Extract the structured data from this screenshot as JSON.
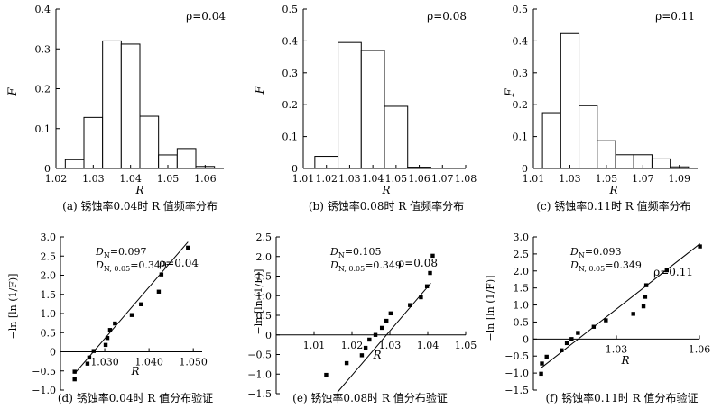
{
  "colors": {
    "ink": "#000000",
    "bar_fill": "#ffffff",
    "background": "#ffffff"
  },
  "chart_data": [
    {
      "type": "bar",
      "panel": "a",
      "caption": "(a) 锈蚀率0.04时 R 值频率分布",
      "xlabel": "R",
      "ylabel": "F",
      "annotation": "ρ=0.04",
      "xlim": [
        1.02,
        1.065
      ],
      "ylim": [
        0,
        0.4
      ],
      "xticks": [
        "1.02",
        "1.03",
        "1.04",
        "1.05",
        "1.06"
      ],
      "yticks": [
        "0",
        "0.1",
        "0.2",
        "0.3",
        "0.4"
      ],
      "bin_edges": [
        1.0225,
        1.0275,
        1.0325,
        1.0375,
        1.0425,
        1.0475,
        1.0525,
        1.0575,
        1.0625
      ],
      "values": [
        0.022,
        0.128,
        0.32,
        0.312,
        0.131,
        0.034,
        0.05,
        0.005
      ]
    },
    {
      "type": "bar",
      "panel": "b",
      "caption": "(b) 锈蚀率0.08时 R 值频率分布",
      "xlabel": "R",
      "ylabel": "F",
      "annotation": "ρ=0.08",
      "xlim": [
        1.01,
        1.08
      ],
      "ylim": [
        0,
        0.5
      ],
      "xticks": [
        "1.01",
        "1.02",
        "1.03",
        "1.04",
        "1.05",
        "1.06",
        "1.07",
        "1.08"
      ],
      "yticks": [
        "0",
        "0.1",
        "0.2",
        "0.3",
        "0.4",
        "0.5"
      ],
      "bin_edges": [
        1.015,
        1.025,
        1.035,
        1.045,
        1.055,
        1.065
      ],
      "values": [
        0.038,
        0.395,
        0.37,
        0.195,
        0.004
      ]
    },
    {
      "type": "bar",
      "panel": "c",
      "caption": "(c) 锈蚀率0.11时 R 值频率分布",
      "xlabel": "R",
      "ylabel": "F",
      "annotation": "ρ=0.11",
      "xlim": [
        1.01,
        1.1
      ],
      "ylim": [
        0,
        0.5
      ],
      "xticks": [
        "1.01",
        "1.03",
        "1.05",
        "1.07",
        "1.09"
      ],
      "yticks": [
        "0",
        "0.1",
        "0.2",
        "0.3",
        "0.4",
        "0.5"
      ],
      "bin_edges": [
        1.015,
        1.025,
        1.035,
        1.045,
        1.055,
        1.065,
        1.075,
        1.085,
        1.095
      ],
      "values": [
        0.175,
        0.423,
        0.197,
        0.087,
        0.043,
        0.043,
        0.03,
        0.005
      ]
    },
    {
      "type": "scatter",
      "panel": "d",
      "caption": "(d) 锈蚀率0.04时 R 值分布验证",
      "xlabel": "R",
      "ylabel": "−ln [ln (1/F)]",
      "annotation": "ρ=0.04",
      "stat_lines": [
        {
          "main": "D",
          "sub": "N",
          "rest": "=0.097"
        },
        {
          "main": "D",
          "sub": "N, 0.05",
          "rest": "=0.349"
        }
      ],
      "xlim": [
        1.02,
        1.052
      ],
      "ylim": [
        -1.0,
        3.0
      ],
      "xticks": [
        "1.030",
        "1.040",
        "1.050"
      ],
      "yticks": [
        "−1.0",
        "−0.5",
        "0",
        "0.5",
        "1.0",
        "1.5",
        "2.0",
        "2.5",
        "3.0"
      ],
      "points": [
        [
          1.0232,
          -0.52
        ],
        [
          1.0232,
          -0.72
        ],
        [
          1.0261,
          -0.31
        ],
        [
          1.0265,
          -0.15
        ],
        [
          1.0275,
          0.02
        ],
        [
          1.0302,
          0.18
        ],
        [
          1.0306,
          0.36
        ],
        [
          1.0312,
          0.57
        ],
        [
          1.0323,
          0.74
        ],
        [
          1.0361,
          0.96
        ],
        [
          1.0382,
          1.24
        ],
        [
          1.0422,
          1.57
        ],
        [
          1.0428,
          2.02
        ],
        [
          1.0488,
          2.72
        ]
      ],
      "fit_line": [
        [
          1.0232,
          -0.57
        ],
        [
          1.0488,
          2.87
        ]
      ]
    },
    {
      "type": "scatter",
      "panel": "e",
      "caption": "(e) 锈蚀率0.08时 R 值分布验证",
      "xlabel": "R",
      "ylabel": "−ln [ln (1/F)]",
      "annotation": "ρ=0.08",
      "stat_lines": [
        {
          "main": "D",
          "sub": "N",
          "rest": "=0.105"
        },
        {
          "main": "D",
          "sub": "N, 0.05",
          "rest": "=0.349"
        }
      ],
      "xlim": [
        1.0,
        1.05
      ],
      "ylim": [
        -1.5,
        2.5
      ],
      "xticks": [
        "1.01",
        "1.02",
        "1.03",
        "1.04",
        "1.05"
      ],
      "yticks": [
        "−1.5",
        "−1.0",
        "−0.5",
        "0",
        "0.5",
        "1.0",
        "1.5",
        "2.0",
        "2.5"
      ],
      "points": [
        [
          1.0132,
          -1.02
        ],
        [
          1.0186,
          -0.72
        ],
        [
          1.0226,
          -0.52
        ],
        [
          1.0236,
          -0.33
        ],
        [
          1.0246,
          -0.12
        ],
        [
          1.0262,
          0.0
        ],
        [
          1.0279,
          0.18
        ],
        [
          1.0291,
          0.36
        ],
        [
          1.0302,
          0.55
        ],
        [
          1.0353,
          0.76
        ],
        [
          1.0382,
          0.96
        ],
        [
          1.0398,
          1.24
        ],
        [
          1.0406,
          1.58
        ],
        [
          1.0413,
          2.02
        ]
      ],
      "fit_line": [
        [
          1.0162,
          -1.46
        ],
        [
          1.0408,
          1.32
        ]
      ]
    },
    {
      "type": "scatter",
      "panel": "f",
      "caption": "(f) 锈蚀率0.11时 R 值分布验证",
      "xlabel": "R",
      "ylabel": "−ln [ln (1/F)]",
      "annotation": "ρ=0.11",
      "stat_lines": [
        {
          "main": "D",
          "sub": "N",
          "rest": "=0.093"
        },
        {
          "main": "D",
          "sub": "N, 0.05",
          "rest": "=0.349"
        }
      ],
      "xlim": [
        1.0,
        1.06
      ],
      "ylim": [
        -1.5,
        3.0
      ],
      "xticks": [
        "1.03",
        "1.06"
      ],
      "yticks": [
        "−1.5",
        "−1.0",
        "−0.5",
        "0",
        "0.5",
        "1.0",
        "1.5",
        "2.0",
        "2.5",
        "3.0"
      ],
      "points": [
        [
          1.0028,
          -1.02
        ],
        [
          1.0031,
          -0.72
        ],
        [
          1.0048,
          -0.52
        ],
        [
          1.0102,
          -0.33
        ],
        [
          1.0121,
          -0.12
        ],
        [
          1.0138,
          0.0
        ],
        [
          1.0161,
          0.18
        ],
        [
          1.0218,
          0.36
        ],
        [
          1.0262,
          0.55
        ],
        [
          1.0361,
          0.74
        ],
        [
          1.0398,
          0.96
        ],
        [
          1.0404,
          1.24
        ],
        [
          1.0408,
          1.58
        ],
        [
          1.0482,
          2.02
        ],
        [
          1.0602,
          2.72
        ]
      ],
      "fit_line": [
        [
          1.0028,
          -0.85
        ],
        [
          1.0602,
          2.8
        ]
      ]
    }
  ]
}
